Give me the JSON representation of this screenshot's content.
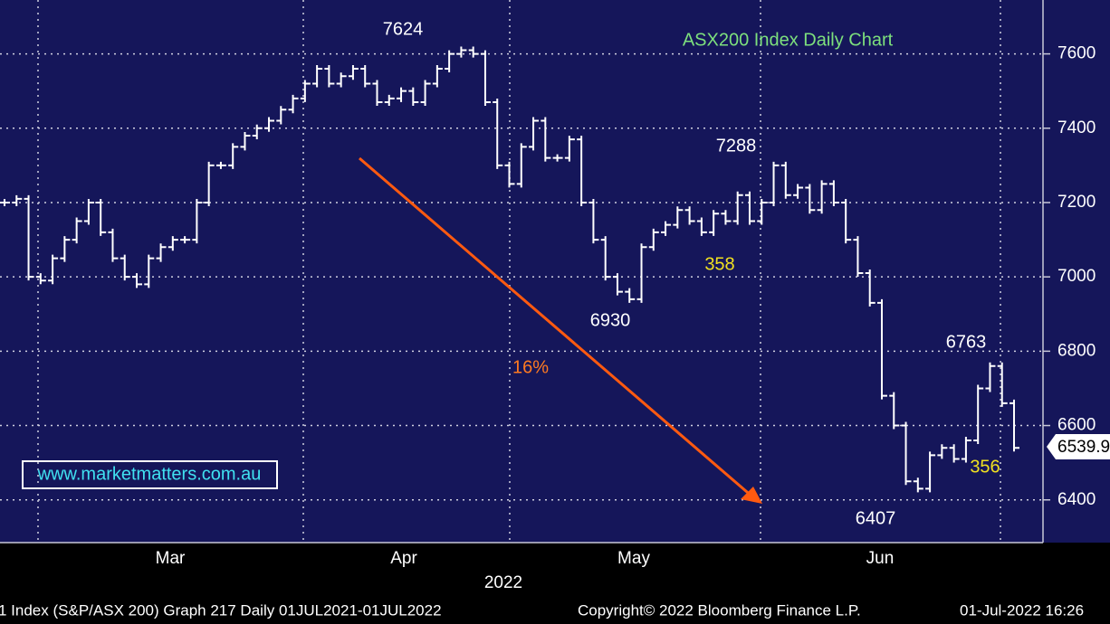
{
  "chart_data": {
    "type": "price_bars",
    "title": "ASX200 Index Daily Chart",
    "color": "#ffffff",
    "categories": [
      null,
      null,
      null,
      null,
      null,
      null,
      null,
      null,
      null,
      null,
      null,
      null,
      null,
      null,
      null,
      null,
      null,
      null,
      null,
      null,
      null,
      null,
      null,
      null,
      null,
      null,
      null,
      null,
      null,
      null,
      null,
      null,
      null,
      null,
      null,
      null,
      null,
      null,
      null,
      null,
      null,
      null,
      null,
      null,
      null,
      null,
      null,
      null,
      null,
      null,
      null,
      null,
      null,
      null,
      null,
      null,
      null,
      null,
      null,
      null,
      null,
      null,
      null,
      null,
      null,
      null,
      null,
      null,
      null,
      null,
      null,
      null,
      null,
      null,
      null,
      null,
      null,
      null,
      null,
      null,
      null,
      null,
      null,
      null,
      null
    ],
    "values": [
      7200,
      7210,
      7000,
      6990,
      7050,
      7100,
      7150,
      7200,
      7120,
      7050,
      7000,
      6980,
      7050,
      7080,
      7100,
      7100,
      7200,
      7300,
      7300,
      7350,
      7380,
      7400,
      7420,
      7450,
      7480,
      7520,
      7560,
      7520,
      7540,
      7560,
      7520,
      7470,
      7480,
      7500,
      7470,
      7520,
      7560,
      7600,
      7610,
      7600,
      7470,
      7300,
      7250,
      7350,
      7420,
      7320,
      7320,
      7370,
      7200,
      7100,
      7000,
      6960,
      6940,
      7080,
      7120,
      7140,
      7180,
      7150,
      7120,
      7170,
      7150,
      7220,
      7150,
      7200,
      7300,
      7220,
      7240,
      7180,
      7250,
      7200,
      7100,
      7010,
      6930,
      6680,
      6600,
      6450,
      6430,
      6520,
      6540,
      6510,
      6560,
      6700,
      6760,
      6660,
      6540
    ],
    "ylim": [
      6285,
      7745
    ],
    "yticks": [
      6400,
      6600,
      6800,
      7000,
      7200,
      7400,
      7600
    ],
    "grid": true,
    "months": [
      "Mar",
      "Apr",
      "May",
      "Jun"
    ],
    "year": "2022",
    "last_value_label": "6539.9",
    "annotations": [
      "7624",
      "7288",
      "6930",
      "6763",
      "6407",
      "358",
      "356",
      "16%"
    ],
    "watermark": "www.marketmatters.com.au",
    "footer": [
      "1 Index (S&P/ASX 200) Graph 217  Daily 01JUL2021-01JUL2022",
      "Copyright© 2022 Bloomberg Finance L.P.",
      "01-Jul-2022 16:26"
    ]
  }
}
